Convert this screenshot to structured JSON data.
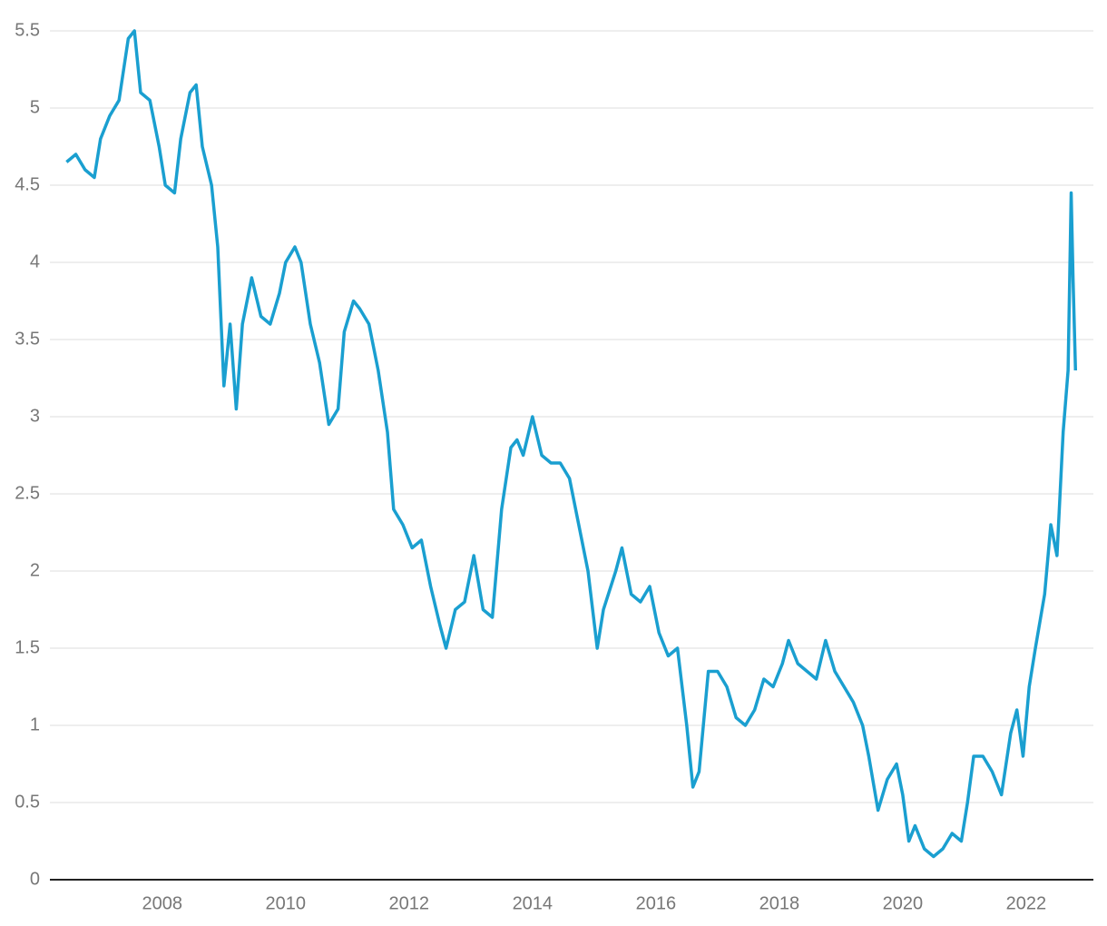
{
  "chart_data": {
    "type": "line",
    "x": [
      2006.45,
      2006.6,
      2006.75,
      2006.9,
      2007.0,
      2007.15,
      2007.3,
      2007.45,
      2007.55,
      2007.65,
      2007.8,
      2007.95,
      2008.05,
      2008.2,
      2008.3,
      2008.45,
      2008.55,
      2008.65,
      2008.8,
      2008.9,
      2009.0,
      2009.1,
      2009.2,
      2009.3,
      2009.45,
      2009.6,
      2009.75,
      2009.9,
      2010.0,
      2010.15,
      2010.25,
      2010.4,
      2010.55,
      2010.7,
      2010.85,
      2010.95,
      2011.1,
      2011.2,
      2011.35,
      2011.5,
      2011.65,
      2011.75,
      2011.9,
      2012.05,
      2012.2,
      2012.35,
      2012.5,
      2012.6,
      2012.75,
      2012.9,
      2013.05,
      2013.2,
      2013.35,
      2013.5,
      2013.65,
      2013.75,
      2013.85,
      2014.0,
      2014.15,
      2014.3,
      2014.45,
      2014.6,
      2014.75,
      2014.9,
      2015.05,
      2015.15,
      2015.35,
      2015.45,
      2015.6,
      2015.75,
      2015.9,
      2016.05,
      2016.2,
      2016.35,
      2016.5,
      2016.6,
      2016.7,
      2016.85,
      2017.0,
      2017.15,
      2017.3,
      2017.45,
      2017.6,
      2017.75,
      2017.9,
      2018.05,
      2018.15,
      2018.3,
      2018.45,
      2018.6,
      2018.75,
      2018.9,
      2019.05,
      2019.2,
      2019.35,
      2019.45,
      2019.6,
      2019.75,
      2019.9,
      2020.0,
      2020.1,
      2020.2,
      2020.35,
      2020.5,
      2020.65,
      2020.8,
      2020.95,
      2021.05,
      2021.15,
      2021.3,
      2021.45,
      2021.6,
      2021.75,
      2021.85,
      2021.95,
      2022.05,
      2022.15,
      2022.3,
      2022.4,
      2022.5,
      2022.6,
      2022.68,
      2022.73,
      2022.76,
      2022.8
    ],
    "series": [
      {
        "color": "#1a9fd0",
        "values": [
          4.65,
          4.7,
          4.6,
          4.55,
          4.8,
          4.95,
          5.05,
          5.45,
          5.5,
          5.1,
          5.05,
          4.75,
          4.5,
          4.45,
          4.8,
          5.1,
          5.15,
          4.75,
          4.5,
          4.1,
          3.2,
          3.6,
          3.05,
          3.6,
          3.9,
          3.65,
          3.6,
          3.8,
          4.0,
          4.1,
          4.0,
          3.6,
          3.35,
          2.95,
          3.05,
          3.55,
          3.75,
          3.7,
          3.6,
          3.3,
          2.9,
          2.4,
          2.3,
          2.15,
          2.2,
          1.9,
          1.65,
          1.5,
          1.75,
          1.8,
          2.1,
          1.75,
          1.7,
          2.4,
          2.8,
          2.85,
          2.75,
          3.0,
          2.75,
          2.7,
          2.7,
          2.6,
          2.3,
          2.0,
          1.5,
          1.75,
          2.0,
          2.15,
          1.85,
          1.8,
          1.9,
          1.6,
          1.45,
          1.5,
          1.0,
          0.6,
          0.7,
          1.35,
          1.35,
          1.25,
          1.05,
          1.0,
          1.1,
          1.3,
          1.25,
          1.4,
          1.55,
          1.4,
          1.35,
          1.3,
          1.55,
          1.35,
          1.25,
          1.15,
          1.0,
          0.8,
          0.45,
          0.65,
          0.75,
          0.55,
          0.25,
          0.35,
          0.2,
          0.15,
          0.2,
          0.3,
          0.25,
          0.5,
          0.8,
          0.8,
          0.7,
          0.55,
          0.95,
          1.1,
          0.8,
          1.25,
          1.5,
          1.85,
          2.3,
          2.1,
          2.9,
          3.3,
          4.45,
          3.9,
          3.3
        ]
      }
    ],
    "xlim": [
      2006.18,
      2023.09
    ],
    "xticks": [
      2008,
      2010,
      2012,
      2014,
      2016,
      2018,
      2020,
      2022
    ],
    "ylim": [
      0,
      5.6
    ],
    "yticks": [
      0,
      0.5,
      1,
      1.5,
      2,
      2.5,
      3,
      3.5,
      4,
      4.5,
      5,
      5.5
    ],
    "grid": true
  }
}
